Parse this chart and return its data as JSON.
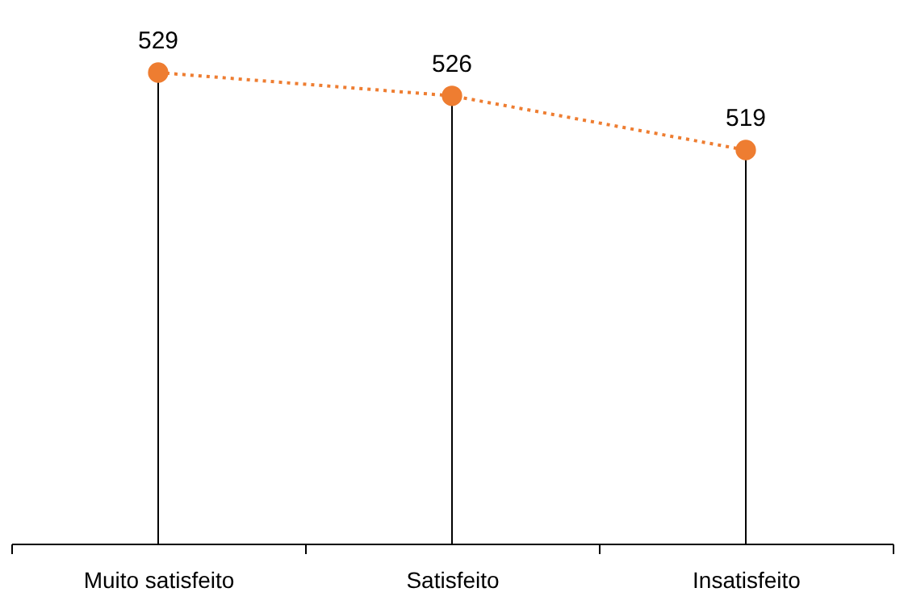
{
  "chart_data": {
    "type": "lollipop",
    "categories": [
      "Muito satisfeito",
      "Satisfeito",
      "Insatisfeito"
    ],
    "series": [
      {
        "color": "#ee7d31",
        "values": [
          529,
          526,
          519
        ]
      }
    ],
    "data_labels": true,
    "marker": "circle",
    "line_style": "dotted",
    "legend": false,
    "tick_labels": "x"
  }
}
